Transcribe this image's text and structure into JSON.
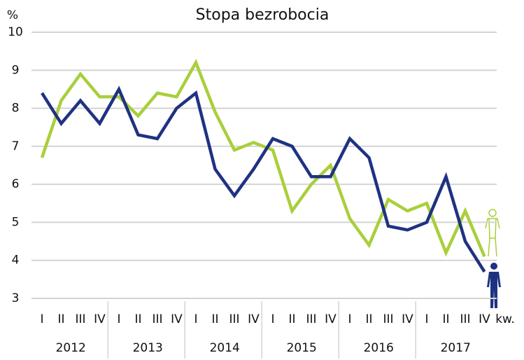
{
  "chart_data": {
    "type": "line",
    "title": "Stopa bezrobocia",
    "y_label": "%",
    "x_label": "kw.",
    "categories": [
      "I",
      "II",
      "III",
      "IV",
      "I",
      "II",
      "III",
      "IV",
      "I",
      "II",
      "III",
      "IV",
      "I",
      "II",
      "III",
      "IV",
      "I",
      "II",
      "III",
      "IV",
      "I",
      "II",
      "III",
      "IV"
    ],
    "groups": [
      "2012",
      "2013",
      "2014",
      "2015",
      "2016",
      "2017"
    ],
    "series": [
      {
        "color": "#a9cf3b",
        "values": [
          6.7,
          8.2,
          8.9,
          8.3,
          8.3,
          7.8,
          8.4,
          8.3,
          9.2,
          7.9,
          6.9,
          7.1,
          6.9,
          5.3,
          6.0,
          6.5,
          5.1,
          4.4,
          5.6,
          5.3,
          5.5,
          4.2,
          5.3,
          4.1
        ]
      },
      {
        "color": "#1f3282",
        "values": [
          8.4,
          7.6,
          8.2,
          7.6,
          8.5,
          7.3,
          7.2,
          8.0,
          8.4,
          6.4,
          5.7,
          6.4,
          7.2,
          7.0,
          6.2,
          6.2,
          7.2,
          6.7,
          4.9,
          4.8,
          5.0,
          6.2,
          4.5,
          3.7
        ]
      }
    ],
    "ylim": [
      3,
      10
    ],
    "yticks": [
      3,
      4,
      5,
      6,
      7,
      8,
      9,
      10
    ],
    "grid": true
  }
}
